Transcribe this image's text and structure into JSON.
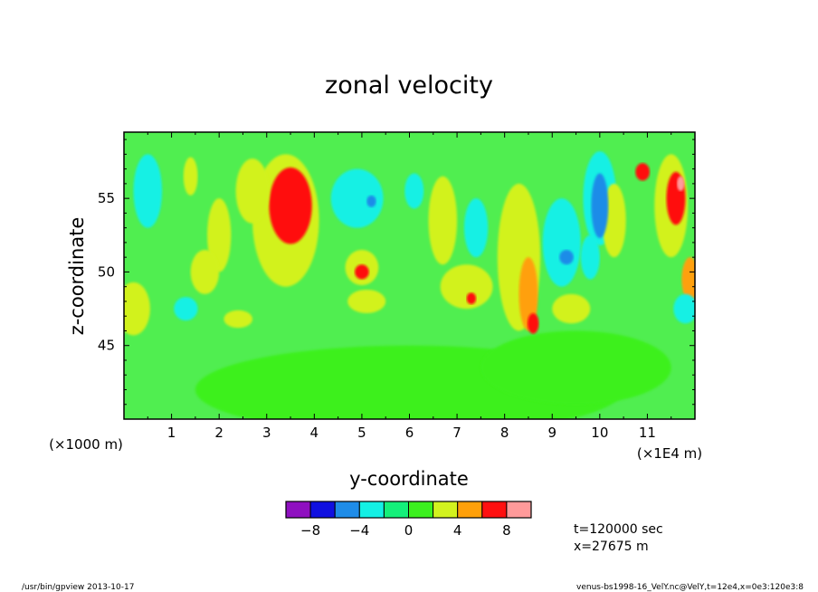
{
  "chart_data": {
    "type": "heatmap",
    "title": "zonal velocity",
    "xlabel": "y-coordinate",
    "ylabel": "z-coordinate",
    "x_unit_left": "(×1000 m)",
    "x_unit_right": "(×1E4 m)",
    "xlim": [
      0,
      12
    ],
    "ylim": [
      40,
      59.5
    ],
    "x_ticks": [
      "1",
      "2",
      "3",
      "4",
      "5",
      "6",
      "7",
      "8",
      "9",
      "10",
      "11"
    ],
    "y_ticks": [
      "45",
      "50",
      "55"
    ],
    "colorbar": {
      "levels": [
        -10,
        -8,
        -6,
        -4,
        -2,
        0,
        2,
        4,
        6,
        8,
        10
      ],
      "labels": [
        "−8",
        "−4",
        "0",
        "4",
        "8"
      ],
      "colors": [
        "#8f10c0",
        "#1010e0",
        "#1e8ce8",
        "#14f0e4",
        "#14f07a",
        "#3cf01e",
        "#d2f21e",
        "#ffa00a",
        "#ff1010",
        "#ff9a9a"
      ]
    },
    "background_color": "#50ee50",
    "blobs": [
      {
        "x": 3.5,
        "y": 54.5,
        "rx": 0.45,
        "ry": 2.6,
        "v": 7
      },
      {
        "x": 3.4,
        "y": 53.5,
        "rx": 0.7,
        "ry": 4.5,
        "v": 3.5
      },
      {
        "x": 2.7,
        "y": 55.5,
        "rx": 0.35,
        "ry": 2.2,
        "v": 3
      },
      {
        "x": 1.4,
        "y": 56.5,
        "rx": 0.15,
        "ry": 1.3,
        "v": 3
      },
      {
        "x": 2.0,
        "y": 52.5,
        "rx": 0.25,
        "ry": 2.5,
        "v": 2.5
      },
      {
        "x": 1.7,
        "y": 50.0,
        "rx": 0.3,
        "ry": 1.5,
        "v": 2.5
      },
      {
        "x": 5.0,
        "y": 50.0,
        "rx": 0.15,
        "ry": 0.5,
        "v": 7
      },
      {
        "x": 5.0,
        "y": 50.3,
        "rx": 0.35,
        "ry": 1.2,
        "v": 3.5
      },
      {
        "x": 5.1,
        "y": 48.0,
        "rx": 0.4,
        "ry": 0.8,
        "v": 2.5
      },
      {
        "x": 2.4,
        "y": 46.8,
        "rx": 0.3,
        "ry": 0.6,
        "v": 3
      },
      {
        "x": 0.2,
        "y": 47.5,
        "rx": 0.35,
        "ry": 1.8,
        "v": 3
      },
      {
        "x": 6.7,
        "y": 53.5,
        "rx": 0.3,
        "ry": 3.0,
        "v": 2.5
      },
      {
        "x": 7.2,
        "y": 49.0,
        "rx": 0.55,
        "ry": 1.5,
        "v": 2.5
      },
      {
        "x": 7.3,
        "y": 48.2,
        "rx": 0.1,
        "ry": 0.4,
        "v": 6
      },
      {
        "x": 8.3,
        "y": 51.0,
        "rx": 0.45,
        "ry": 5.0,
        "v": 3.5
      },
      {
        "x": 8.5,
        "y": 48.5,
        "rx": 0.2,
        "ry": 2.5,
        "v": 5
      },
      {
        "x": 8.6,
        "y": 46.5,
        "rx": 0.12,
        "ry": 0.7,
        "v": 7.5
      },
      {
        "x": 9.4,
        "y": 47.5,
        "rx": 0.4,
        "ry": 1.0,
        "v": 2.5
      },
      {
        "x": 10.3,
        "y": 53.5,
        "rx": 0.25,
        "ry": 2.5,
        "v": 2.5
      },
      {
        "x": 11.5,
        "y": 54.5,
        "rx": 0.35,
        "ry": 3.5,
        "v": 3.5
      },
      {
        "x": 11.6,
        "y": 55.0,
        "rx": 0.2,
        "ry": 1.8,
        "v": 6
      },
      {
        "x": 11.7,
        "y": 56.0,
        "rx": 0.08,
        "ry": 0.5,
        "v": 8.5
      },
      {
        "x": 10.9,
        "y": 56.8,
        "rx": 0.15,
        "ry": 0.6,
        "v": 6
      },
      {
        "x": 11.9,
        "y": 49.5,
        "rx": 0.18,
        "ry": 1.5,
        "v": 5
      },
      {
        "x": 0.5,
        "y": 55.5,
        "rx": 0.3,
        "ry": 2.5,
        "v": -3
      },
      {
        "x": 4.9,
        "y": 55.0,
        "rx": 0.55,
        "ry": 2.0,
        "v": -3
      },
      {
        "x": 5.2,
        "y": 54.8,
        "rx": 0.1,
        "ry": 0.4,
        "v": -6
      },
      {
        "x": 7.4,
        "y": 53.0,
        "rx": 0.25,
        "ry": 2.0,
        "v": -2.5
      },
      {
        "x": 9.3,
        "y": 51.0,
        "rx": 0.15,
        "ry": 0.5,
        "v": -6
      },
      {
        "x": 9.2,
        "y": 52.0,
        "rx": 0.4,
        "ry": 3.0,
        "v": -2.5
      },
      {
        "x": 9.8,
        "y": 51.0,
        "rx": 0.2,
        "ry": 1.5,
        "v": -3
      },
      {
        "x": 10.0,
        "y": 54.5,
        "rx": 0.18,
        "ry": 2.2,
        "v": -5
      },
      {
        "x": 10.0,
        "y": 55.0,
        "rx": 0.35,
        "ry": 3.2,
        "v": -2.5
      },
      {
        "x": 1.3,
        "y": 47.5,
        "rx": 0.25,
        "ry": 0.8,
        "v": -3
      },
      {
        "x": 6.1,
        "y": 55.5,
        "rx": 0.2,
        "ry": 1.2,
        "v": -2.5
      },
      {
        "x": 11.8,
        "y": 47.5,
        "rx": 0.25,
        "ry": 1.0,
        "v": -3
      },
      {
        "x": 6.0,
        "y": 42.0,
        "rx": 4.5,
        "ry": 3.0,
        "v": 0.5
      },
      {
        "x": 9.5,
        "y": 43.5,
        "rx": 2.0,
        "ry": 2.5,
        "v": 0.5
      }
    ]
  },
  "annotations": {
    "time": "t=120000 sec",
    "position": "x=27675 m"
  },
  "footer": {
    "left": "/usr/bin/gpview  2013-10-17",
    "right": "venus-bs1998-16_VelY.nc@VelY,t=12e4,x=0e3:120e3:8"
  }
}
